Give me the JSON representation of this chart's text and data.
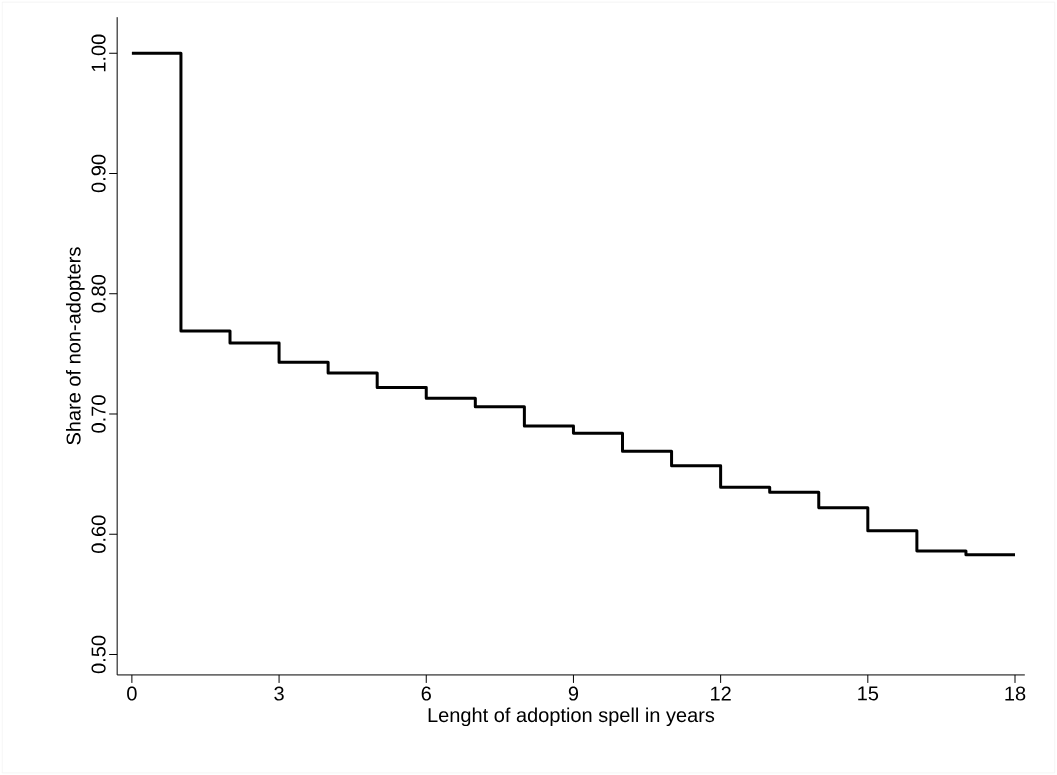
{
  "chart_data": {
    "type": "step",
    "xlabel": "Lenght of adoption spell in years",
    "ylabel": "Share of non-adopters",
    "x": [
      0,
      1,
      2,
      3,
      4,
      5,
      6,
      7,
      8,
      9,
      10,
      11,
      12,
      13,
      14,
      15,
      16,
      17,
      18
    ],
    "series": [
      {
        "color": "#000000",
        "values": [
          1.0,
          0.769,
          0.759,
          0.743,
          0.734,
          0.722,
          0.713,
          0.706,
          0.69,
          0.684,
          0.669,
          0.657,
          0.639,
          0.635,
          0.622,
          0.603,
          0.586,
          0.583,
          0.583
        ]
      }
    ],
    "xlim": [
      -0.3,
      18.2
    ],
    "ylim": [
      0.483,
      1.03
    ],
    "xticks": [
      0,
      3,
      6,
      9,
      12,
      15,
      18
    ],
    "yticks": [
      {
        "value": 0.5,
        "label": "0.50"
      },
      {
        "value": 0.6,
        "label": "0.60"
      },
      {
        "value": 0.7,
        "label": "0.70"
      },
      {
        "value": 0.8,
        "label": "0.80"
      },
      {
        "value": 0.9,
        "label": "0.90"
      },
      {
        "value": 1.0,
        "label": "1.00"
      }
    ]
  }
}
